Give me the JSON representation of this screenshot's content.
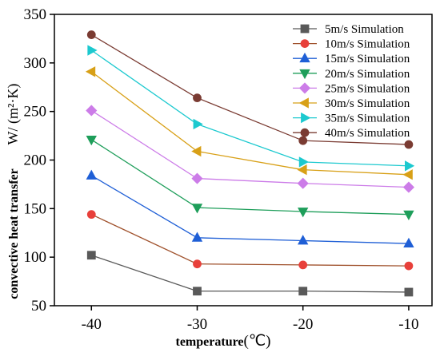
{
  "chart_data": {
    "type": "line",
    "title": "",
    "xlabel": "temperature",
    "xlabel_unit": "(℃)",
    "ylabel": "convective heat transfer",
    "ylabel_unit": "W/ (m²·K)",
    "x": [
      -40,
      -30,
      -20,
      -10
    ],
    "x_tick_labels": [
      "-40",
      "-30",
      "-20",
      "-10"
    ],
    "xlim": [
      -43.5,
      -7.8
    ],
    "ylim": [
      50,
      350
    ],
    "y_ticks": [
      50,
      100,
      150,
      200,
      250,
      300,
      350
    ],
    "y_tick_labels": [
      "50",
      "100",
      "150",
      "200",
      "250",
      "300",
      "350"
    ],
    "grid": false,
    "legend_position": "top-right",
    "series": [
      {
        "name": "5m/s Simulation",
        "values": [
          102,
          65,
          65,
          64
        ],
        "color": "#595959",
        "marker": "square"
      },
      {
        "name": "10m/s Simulation",
        "values": [
          144,
          93,
          92,
          91
        ],
        "color": "#e8403a",
        "line_color": "#a0522d",
        "marker": "circle"
      },
      {
        "name": "15m/s Simulation",
        "values": [
          184,
          120,
          117,
          114
        ],
        "color": "#1f5fd6",
        "marker": "triangle-up"
      },
      {
        "name": "20m/s Simulation",
        "values": [
          221,
          151,
          147,
          144
        ],
        "color": "#1e9e5a",
        "marker": "triangle-down"
      },
      {
        "name": "25m/s Simulation",
        "values": [
          251,
          181,
          176,
          172
        ],
        "color": "#cc7ce8",
        "marker": "diamond"
      },
      {
        "name": "30m/s Simulation",
        "values": [
          291,
          209,
          190,
          185
        ],
        "color": "#d8a017",
        "marker": "triangle-left"
      },
      {
        "name": "35m/s Simulation",
        "values": [
          313,
          237,
          198,
          194
        ],
        "color": "#1cc9cf",
        "marker": "triangle-right"
      },
      {
        "name": "40m/s Simulation",
        "values": [
          329,
          264,
          220,
          216
        ],
        "color": "#7a3b32",
        "marker": "circle"
      }
    ]
  }
}
